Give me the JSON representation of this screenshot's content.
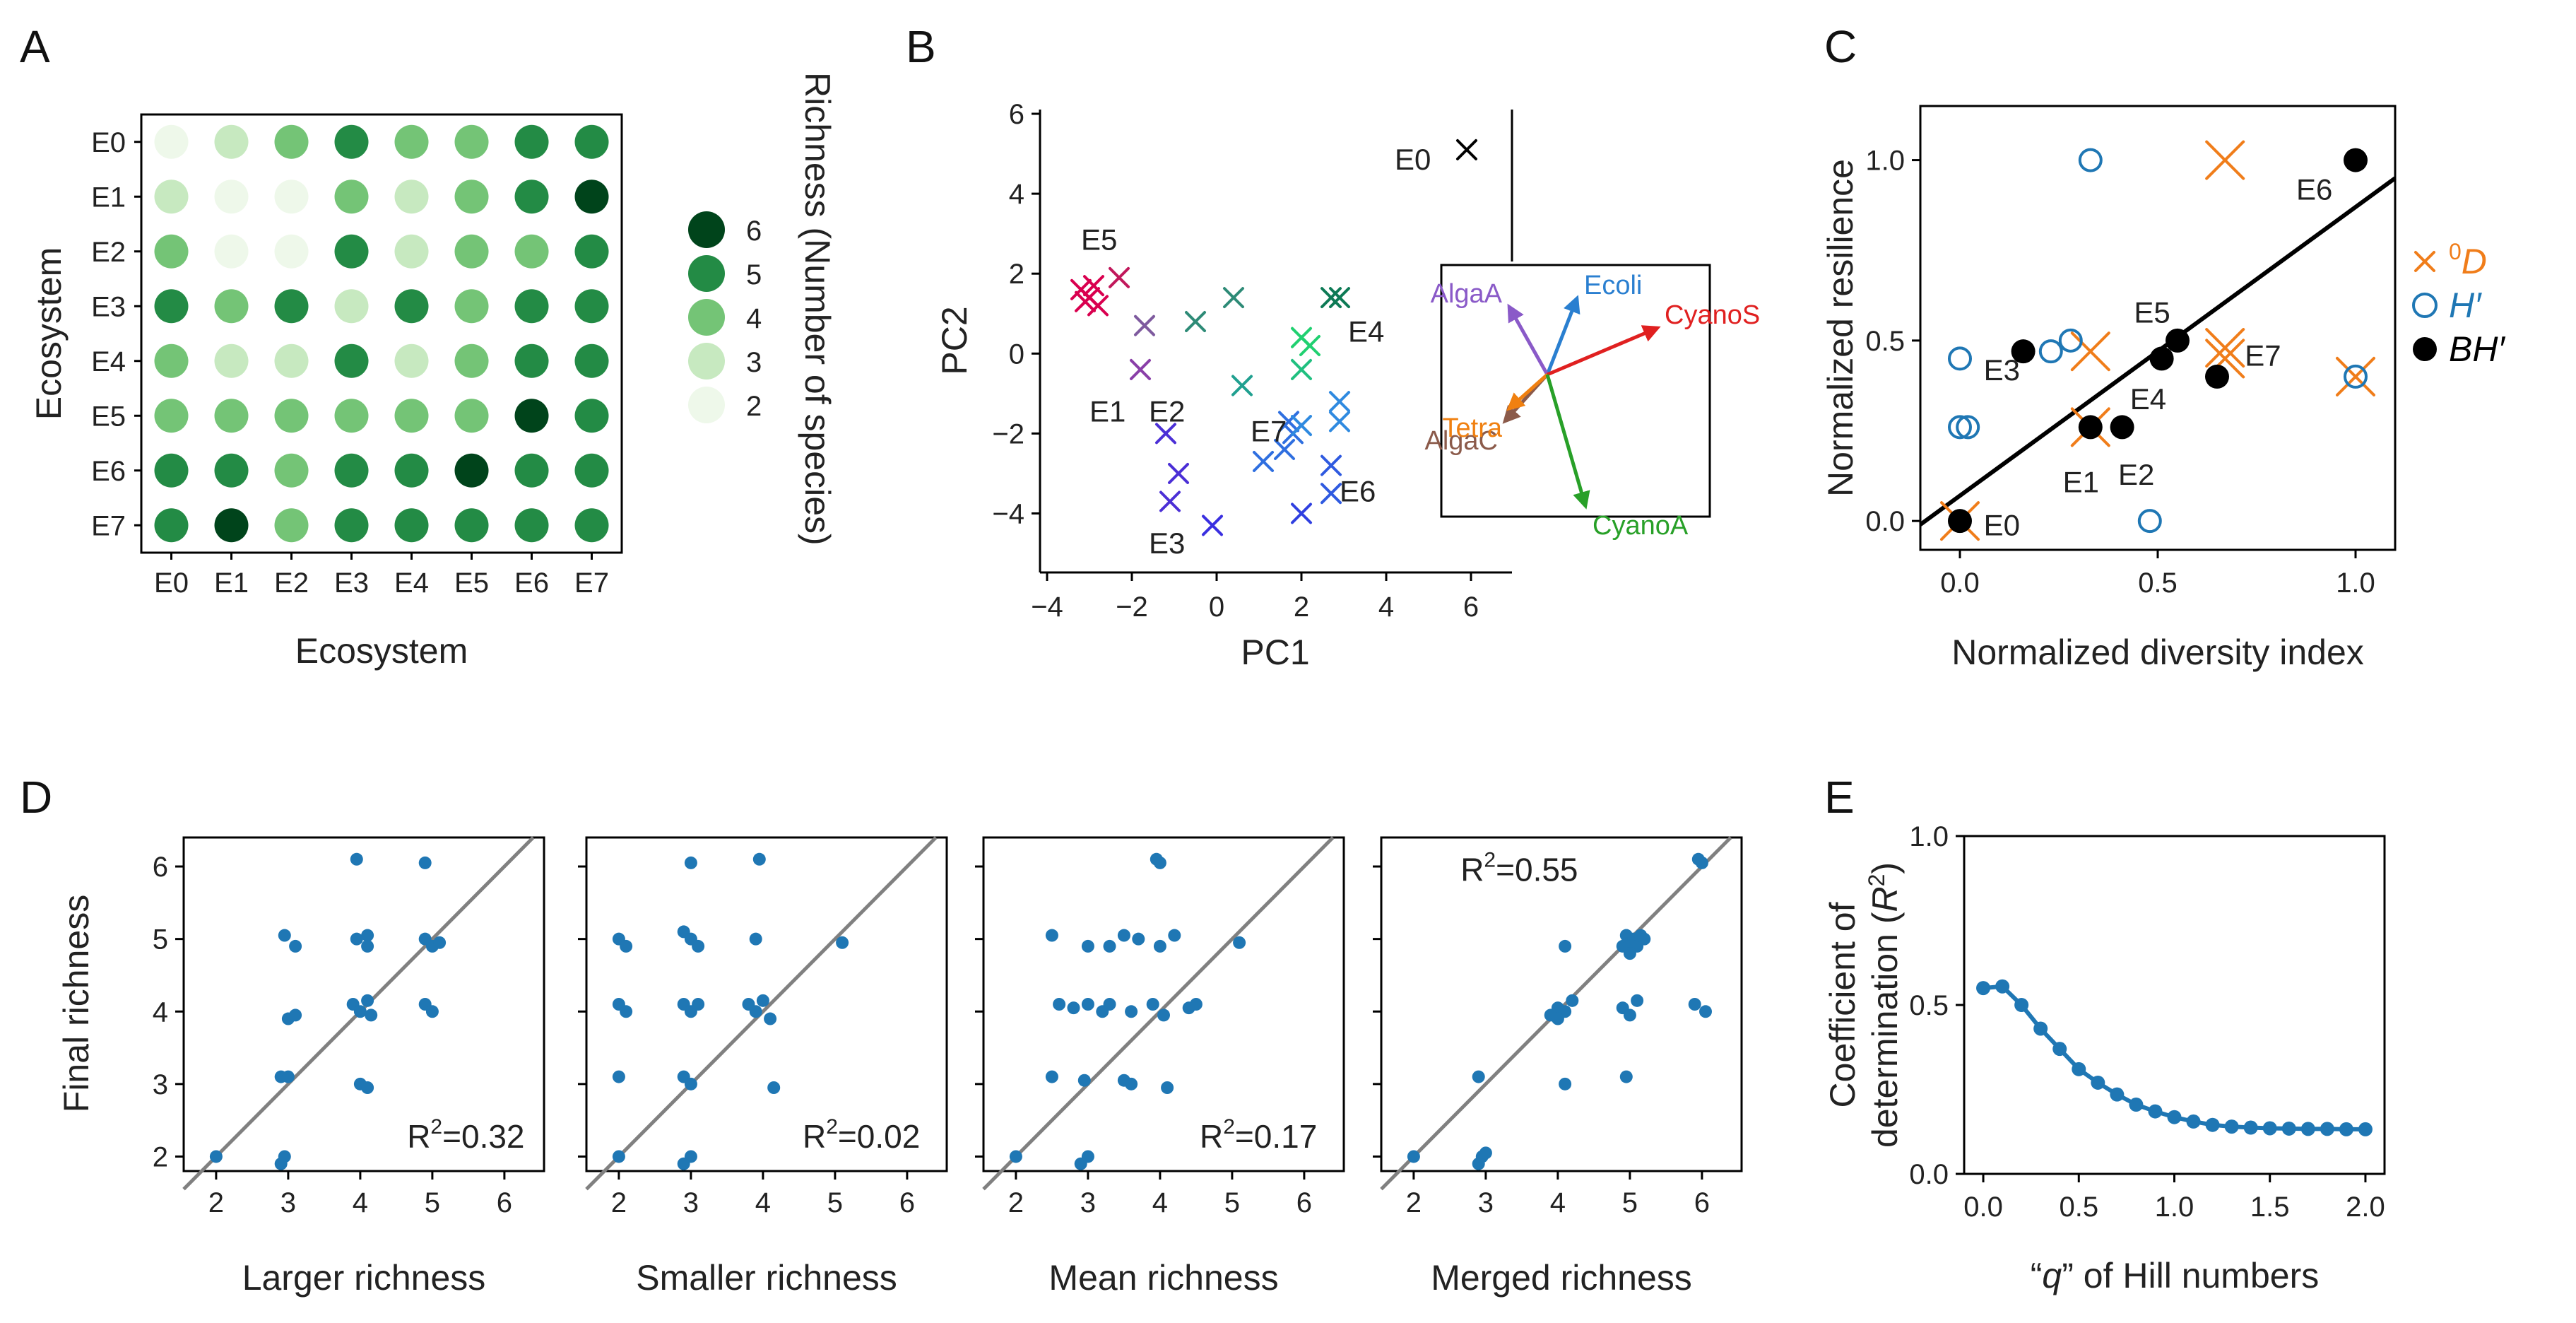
{
  "chart_data": [
    {
      "panel": "A",
      "type": "heatmap",
      "xlabel": "Ecosystem",
      "ylabel": "Ecosystem",
      "rows": [
        "E0",
        "E1",
        "E2",
        "E3",
        "E4",
        "E5",
        "E6",
        "E7"
      ],
      "cols": [
        "E0",
        "E1",
        "E2",
        "E3",
        "E4",
        "E5",
        "E6",
        "E7"
      ],
      "values": [
        [
          2,
          3,
          4,
          5,
          4,
          4,
          5,
          5
        ],
        [
          3,
          2,
          2,
          4,
          3,
          4,
          5,
          6
        ],
        [
          4,
          2,
          2,
          5,
          3,
          4,
          4,
          5
        ],
        [
          5,
          4,
          5,
          3,
          5,
          4,
          5,
          5
        ],
        [
          4,
          3,
          3,
          5,
          3,
          4,
          5,
          5
        ],
        [
          4,
          4,
          4,
          4,
          4,
          4,
          6,
          5
        ],
        [
          5,
          5,
          4,
          5,
          5,
          6,
          5,
          5
        ],
        [
          5,
          6,
          4,
          5,
          5,
          5,
          5,
          5
        ]
      ],
      "legend_title": "Richness (Number of species)",
      "legend_values": [
        6,
        5,
        4,
        3,
        2
      ]
    },
    {
      "panel": "B",
      "type": "scatter",
      "xlabel": "PC1",
      "ylabel": "PC2",
      "xlim": [
        -4,
        6.8
      ],
      "ylim": [
        -5.3,
        6
      ],
      "xticks": [
        -4,
        -2,
        0,
        2,
        4,
        6
      ],
      "yticks": [
        -4,
        -2,
        0,
        2,
        4,
        6
      ],
      "points": [
        {
          "x": 5.9,
          "y": 5.1,
          "c": "#000000"
        },
        {
          "x": -3.2,
          "y": 1.6,
          "c": "#d9004f"
        },
        {
          "x": -3.0,
          "y": 1.4,
          "c": "#d9004f"
        },
        {
          "x": -2.9,
          "y": 1.7,
          "c": "#d9004f"
        },
        {
          "x": -2.8,
          "y": 1.2,
          "c": "#d9004f"
        },
        {
          "x": -3.1,
          "y": 1.3,
          "c": "#d9004f"
        },
        {
          "x": -2.3,
          "y": 1.9,
          "c": "#c1185b"
        },
        {
          "x": -1.8,
          "y": -0.4,
          "c": "#8a3fa8"
        },
        {
          "x": -1.7,
          "y": 0.7,
          "c": "#7e5a9e"
        },
        {
          "x": -0.5,
          "y": 0.8,
          "c": "#2e8b77"
        },
        {
          "x": 0.4,
          "y": 1.4,
          "c": "#2e8b77"
        },
        {
          "x": 0.6,
          "y": -0.8,
          "c": "#20a090"
        },
        {
          "x": 2.0,
          "y": 0.4,
          "c": "#20d070"
        },
        {
          "x": 2.2,
          "y": 0.2,
          "c": "#20d070"
        },
        {
          "x": 2.0,
          "y": -0.4,
          "c": "#20c080"
        },
        {
          "x": 2.7,
          "y": 1.4,
          "c": "#0d7a55"
        },
        {
          "x": 2.9,
          "y": 1.4,
          "c": "#0d7a55"
        },
        {
          "x": -1.2,
          "y": -2.0,
          "c": "#4b2fd6"
        },
        {
          "x": -0.9,
          "y": -3.0,
          "c": "#4b2fd6"
        },
        {
          "x": -1.1,
          "y": -3.7,
          "c": "#4b2fd6"
        },
        {
          "x": -0.1,
          "y": -4.3,
          "c": "#3a2fe0"
        },
        {
          "x": 1.1,
          "y": -2.7,
          "c": "#2f6fe0"
        },
        {
          "x": 1.6,
          "y": -2.4,
          "c": "#2f6fe0"
        },
        {
          "x": 1.7,
          "y": -1.7,
          "c": "#2f6fe0"
        },
        {
          "x": 1.8,
          "y": -2.0,
          "c": "#2f6fe0"
        },
        {
          "x": 2.0,
          "y": -1.8,
          "c": "#2f8ae0"
        },
        {
          "x": 2.0,
          "y": -4.0,
          "c": "#2f3fe0"
        },
        {
          "x": 2.7,
          "y": -3.5,
          "c": "#2f5ae0"
        },
        {
          "x": 2.7,
          "y": -2.8,
          "c": "#2f5ae0"
        },
        {
          "x": 2.9,
          "y": -1.7,
          "c": "#2f8ae0"
        },
        {
          "x": 2.9,
          "y": -1.2,
          "c": "#2f8ae0"
        }
      ],
      "point_labels": [
        {
          "text": "E0",
          "x": 4.2,
          "y": 4.6
        },
        {
          "text": "E5",
          "x": -3.2,
          "y": 2.6
        },
        {
          "text": "E1",
          "x": -3.0,
          "y": -1.7
        },
        {
          "text": "E2",
          "x": -1.6,
          "y": -1.7
        },
        {
          "text": "E7",
          "x": 0.8,
          "y": -2.2
        },
        {
          "text": "E3",
          "x": -1.6,
          "y": -5.0
        },
        {
          "text": "E6",
          "x": 2.9,
          "y": -3.7
        },
        {
          "text": "E4",
          "x": 3.1,
          "y": 0.3
        }
      ],
      "loadings": [
        {
          "name": "Ecoli",
          "dx": 0.7,
          "dy": 1.8,
          "color": "#2a7fd0"
        },
        {
          "name": "AlgaA",
          "dx": -0.9,
          "dy": 1.6,
          "color": "#8a5ac8"
        },
        {
          "name": "CyanoS",
          "dx": 2.6,
          "dy": 1.1,
          "color": "#e02020"
        },
        {
          "name": "AlgaC",
          "dx": -1.0,
          "dy": -1.1,
          "color": "#8b5a4a"
        },
        {
          "name": "Tetra",
          "dx": -0.9,
          "dy": -0.8,
          "color": "#f08010"
        },
        {
          "name": "CyanoA",
          "dx": 0.9,
          "dy": -3.1,
          "color": "#28a028"
        }
      ]
    },
    {
      "panel": "C",
      "type": "scatter",
      "xlabel": "Normalized diversity index",
      "ylabel": "Normalized resilience",
      "xlim": [
        -0.1,
        1.1
      ],
      "ylim": [
        -0.08,
        1.15
      ],
      "xticks": [
        "0.0",
        "0.5",
        "1.0"
      ],
      "yticks": [
        "0.0",
        "0.5",
        "1.0"
      ],
      "legend": [
        {
          "marker": "x",
          "label_main": "D",
          "label_sup": "0",
          "color": "#f07d1a"
        },
        {
          "marker": "o",
          "label_main": "H′",
          "label_sup": "",
          "color": "#1f77b4"
        },
        {
          "marker": "dot",
          "label_main": "BH′",
          "label_sup": "",
          "color": "#000000"
        }
      ],
      "series_0D": [
        [
          0.0,
          0.0
        ],
        [
          0.33,
          0.47
        ],
        [
          0.33,
          0.26
        ],
        [
          0.67,
          1.0
        ],
        [
          0.67,
          0.48
        ],
        [
          0.67,
          0.45
        ],
        [
          1.0,
          0.4
        ]
      ],
      "series_H": [
        [
          0.0,
          0.45
        ],
        [
          0.0,
          0.26
        ],
        [
          0.02,
          0.26
        ],
        [
          0.23,
          0.47
        ],
        [
          0.28,
          0.5
        ],
        [
          0.33,
          1.0
        ],
        [
          0.48,
          0.0
        ],
        [
          1.0,
          0.4
        ]
      ],
      "series_BH": [
        [
          0.0,
          0.0
        ],
        [
          0.16,
          0.47
        ],
        [
          0.33,
          0.26
        ],
        [
          0.41,
          0.26
        ],
        [
          0.51,
          0.45
        ],
        [
          0.55,
          0.5
        ],
        [
          0.65,
          0.4
        ],
        [
          1.0,
          1.0
        ]
      ],
      "fit_line": {
        "x0": -0.1,
        "y0": -0.01,
        "x1": 1.1,
        "y1": 0.95
      },
      "point_labels": [
        {
          "text": "E6",
          "x": 0.85,
          "y": 0.89
        },
        {
          "text": "E5",
          "x": 0.44,
          "y": 0.55
        },
        {
          "text": "E7",
          "x": 0.72,
          "y": 0.43
        },
        {
          "text": "E3",
          "x": 0.06,
          "y": 0.39
        },
        {
          "text": "E4",
          "x": 0.43,
          "y": 0.31
        },
        {
          "text": "E1",
          "x": 0.26,
          "y": 0.08
        },
        {
          "text": "E2",
          "x": 0.4,
          "y": 0.1
        },
        {
          "text": "E0",
          "x": 0.06,
          "y": -0.04
        }
      ]
    },
    {
      "panel": "D1",
      "type": "scatter",
      "xlabel": "Larger richness",
      "ylabel": "Final richness",
      "annotation": "0.32",
      "xlim": [
        1.55,
        6.55
      ],
      "ylim": [
        1.8,
        6.4
      ],
      "xticks": [
        2,
        3,
        4,
        5,
        6
      ],
      "yticks": [
        2,
        3,
        4,
        5,
        6
      ],
      "points": [
        [
          2,
          2
        ],
        [
          2.9,
          1.9
        ],
        [
          2.95,
          2.0
        ],
        [
          2.9,
          3.1
        ],
        [
          3.0,
          3.1
        ],
        [
          3.0,
          3.9
        ],
        [
          3.1,
          3.95
        ],
        [
          2.95,
          5.05
        ],
        [
          3.1,
          4.9
        ],
        [
          3.95,
          6.1
        ],
        [
          3.95,
          5.0
        ],
        [
          4.1,
          5.05
        ],
        [
          4.1,
          4.9
        ],
        [
          3.9,
          4.1
        ],
        [
          4.0,
          4.0
        ],
        [
          4.1,
          4.15
        ],
        [
          4.15,
          3.95
        ],
        [
          4.0,
          3.0
        ],
        [
          4.1,
          2.95
        ],
        [
          4.9,
          6.05
        ],
        [
          4.9,
          5.0
        ],
        [
          5.0,
          4.9
        ],
        [
          5.1,
          4.95
        ],
        [
          4.9,
          4.1
        ],
        [
          5.0,
          4.0
        ]
      ]
    },
    {
      "panel": "D2",
      "type": "scatter",
      "xlabel": "Smaller richness",
      "annotation": "0.02",
      "xlim": [
        1.55,
        6.55
      ],
      "ylim": [
        1.8,
        6.4
      ],
      "xticks": [
        2,
        3,
        4,
        5,
        6
      ],
      "points": [
        [
          2,
          2
        ],
        [
          2.9,
          1.9
        ],
        [
          3.0,
          2.0
        ],
        [
          2.0,
          3.1
        ],
        [
          2.9,
          3.1
        ],
        [
          3.0,
          3.0
        ],
        [
          2.0,
          4.1
        ],
        [
          2.1,
          4.0
        ],
        [
          2.9,
          4.1
        ],
        [
          3.0,
          4.0
        ],
        [
          3.1,
          4.1
        ],
        [
          3.8,
          4.1
        ],
        [
          3.9,
          4.0
        ],
        [
          4.0,
          4.15
        ],
        [
          4.1,
          3.9
        ],
        [
          2.0,
          5.0
        ],
        [
          2.1,
          4.9
        ],
        [
          2.9,
          5.1
        ],
        [
          3.0,
          5.0
        ],
        [
          3.1,
          4.9
        ],
        [
          3.9,
          5.0
        ],
        [
          5.1,
          4.95
        ],
        [
          3.0,
          6.05
        ],
        [
          3.95,
          6.1
        ],
        [
          4.15,
          2.95
        ]
      ]
    },
    {
      "panel": "D3",
      "type": "scatter",
      "xlabel": "Mean richness",
      "annotation": "0.17",
      "xlim": [
        1.55,
        6.55
      ],
      "ylim": [
        1.8,
        6.4
      ],
      "xticks": [
        2,
        3,
        4,
        5,
        6
      ],
      "points": [
        [
          2,
          2
        ],
        [
          2.9,
          1.9
        ],
        [
          3.0,
          2.0
        ],
        [
          2.5,
          3.1
        ],
        [
          2.95,
          3.05
        ],
        [
          3.5,
          3.05
        ],
        [
          3.6,
          3.0
        ],
        [
          4.1,
          2.95
        ],
        [
          2.6,
          4.1
        ],
        [
          2.8,
          4.05
        ],
        [
          3.0,
          4.1
        ],
        [
          3.2,
          4.0
        ],
        [
          3.3,
          4.1
        ],
        [
          3.6,
          4.0
        ],
        [
          3.9,
          4.1
        ],
        [
          4.05,
          3.95
        ],
        [
          4.4,
          4.05
        ],
        [
          4.5,
          4.1
        ],
        [
          2.5,
          5.05
        ],
        [
          3.0,
          4.9
        ],
        [
          3.3,
          4.9
        ],
        [
          3.5,
          5.05
        ],
        [
          3.7,
          5.0
        ],
        [
          4.0,
          4.9
        ],
        [
          4.2,
          5.05
        ],
        [
          5.1,
          4.95
        ],
        [
          3.95,
          6.1
        ],
        [
          4.0,
          6.05
        ]
      ]
    },
    {
      "panel": "D4",
      "type": "scatter",
      "xlabel": "Merged richness",
      "annotation": "0.55",
      "xlim": [
        1.55,
        6.55
      ],
      "ylim": [
        1.8,
        6.4
      ],
      "xticks": [
        2,
        3,
        4,
        5,
        6
      ],
      "points": [
        [
          2,
          2
        ],
        [
          2.9,
          1.9
        ],
        [
          2.95,
          2.0
        ],
        [
          3.0,
          2.05
        ],
        [
          2.9,
          3.1
        ],
        [
          4.1,
          4.9
        ],
        [
          3.9,
          3.95
        ],
        [
          4.0,
          4.05
        ],
        [
          4.1,
          4.0
        ],
        [
          4.2,
          4.15
        ],
        [
          4.0,
          3.9
        ],
        [
          4.9,
          4.05
        ],
        [
          5.0,
          3.95
        ],
        [
          5.1,
          4.15
        ],
        [
          4.95,
          3.1
        ],
        [
          4.1,
          3.0
        ],
        [
          4.9,
          4.9
        ],
        [
          4.95,
          5.05
        ],
        [
          5.0,
          4.95
        ],
        [
          5.05,
          5.0
        ],
        [
          5.1,
          4.9
        ],
        [
          5.15,
          5.05
        ],
        [
          5.2,
          5.0
        ],
        [
          5.0,
          4.8
        ],
        [
          5.9,
          4.1
        ],
        [
          6.05,
          4.0
        ],
        [
          6.0,
          6.05
        ],
        [
          5.95,
          6.1
        ]
      ]
    },
    {
      "panel": "E",
      "type": "line",
      "xlabel": "q of Hill numbers",
      "ylabel": "Coefficient of determination",
      "xlim": [
        -0.1,
        2.1
      ],
      "ylim": [
        0,
        1.0
      ],
      "xticks": [
        "0.0",
        "0.5",
        "1.0",
        "1.5",
        "2.0"
      ],
      "yticks": [
        "0.0",
        "0.5",
        "1.0"
      ],
      "x": [
        0.0,
        0.1,
        0.2,
        0.3,
        0.4,
        0.5,
        0.6,
        0.7,
        0.8,
        0.9,
        1.0,
        1.1,
        1.2,
        1.3,
        1.4,
        1.5,
        1.6,
        1.7,
        1.8,
        1.9,
        2.0
      ],
      "y": [
        0.55,
        0.555,
        0.5,
        0.43,
        0.37,
        0.31,
        0.27,
        0.235,
        0.205,
        0.185,
        0.168,
        0.155,
        0.145,
        0.14,
        0.137,
        0.135,
        0.134,
        0.133,
        0.133,
        0.132,
        0.132
      ]
    }
  ],
  "labels": {
    "panel_A": "A",
    "panel_B": "B",
    "panel_C": "C",
    "panel_D": "D",
    "panel_E": "E",
    "r2_prefix": "R",
    "r2_exp": "2",
    "r2_eq": "=",
    "e_q_open": "“",
    "e_q_var": "q",
    "e_q_close": "” of Hill numbers",
    "e_ylabel_1": "Coefficient of",
    "e_ylabel_2": "determination (",
    "e_ylabel_var": "R",
    "e_ylabel_close": ")"
  },
  "colors": {
    "greens": {
      "2": "#eef8ea",
      "3": "#c7e9c0",
      "4": "#74c476",
      "5": "#238b45",
      "6": "#00441b"
    },
    "blue_point": "#1f77b4",
    "orange": "#f07d1a",
    "identity_line": "#808080"
  }
}
